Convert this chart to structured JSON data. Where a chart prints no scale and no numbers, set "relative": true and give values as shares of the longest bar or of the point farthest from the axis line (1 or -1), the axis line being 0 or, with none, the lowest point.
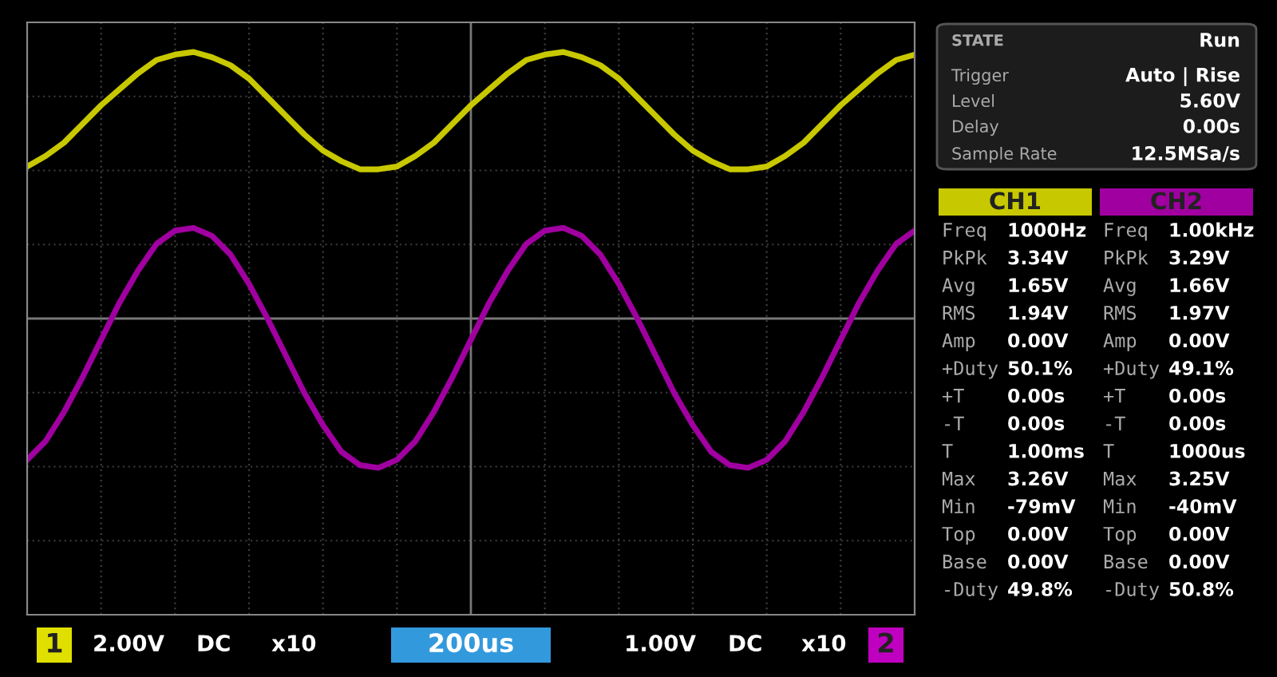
{
  "chart_data": {
    "type": "line",
    "relative": true,
    "grid": true,
    "categories": [
      null,
      null,
      null,
      null,
      null,
      null,
      null,
      null,
      null,
      null,
      null,
      null,
      null,
      null,
      null,
      null,
      null,
      null,
      null,
      null,
      null,
      null,
      null,
      null,
      null,
      null,
      null,
      null,
      null,
      null,
      null,
      null,
      null,
      null,
      null,
      null,
      null,
      null,
      null,
      null,
      null,
      null,
      null,
      null,
      null,
      null,
      null,
      null,
      null
    ],
    "series": [
      {
        "name": "CH1",
        "color": "#c8c800",
        "values": [
          0.57,
          0.61,
          0.66,
          0.73,
          0.8,
          0.86,
          0.92,
          0.97,
          0.99,
          1.0,
          0.98,
          0.95,
          0.9,
          0.83,
          0.76,
          0.69,
          0.63,
          0.59,
          0.56,
          0.56,
          0.57,
          0.61,
          0.66,
          0.73,
          0.8,
          0.86,
          0.92,
          0.97,
          0.99,
          1.0,
          0.98,
          0.95,
          0.9,
          0.83,
          0.76,
          0.69,
          0.63,
          0.59,
          0.56,
          0.56,
          0.57,
          0.61,
          0.66,
          0.73,
          0.8,
          0.86,
          0.92,
          0.97,
          0.99
        ]
      },
      {
        "name": "CH2",
        "color": "#a000a0",
        "values": [
          -0.53,
          -0.46,
          -0.35,
          -0.22,
          -0.08,
          0.06,
          0.18,
          0.28,
          0.33,
          0.34,
          0.31,
          0.24,
          0.13,
          0.0,
          -0.14,
          -0.28,
          -0.4,
          -0.5,
          -0.55,
          -0.56,
          -0.53,
          -0.46,
          -0.35,
          -0.22,
          -0.08,
          0.06,
          0.18,
          0.28,
          0.33,
          0.34,
          0.31,
          0.24,
          0.13,
          0.0,
          -0.14,
          -0.28,
          -0.4,
          -0.5,
          -0.55,
          -0.56,
          -0.53,
          -0.46,
          -0.35,
          -0.22,
          -0.08,
          0.06,
          0.18,
          0.28,
          0.33
        ]
      }
    ],
    "annotations": [
      "STATE",
      "Run",
      "Trigger",
      "Auto | Rise",
      "Level",
      "5.60V",
      "Delay",
      "0.00s",
      "Sample Rate",
      "12.5MSa/s",
      "Freq",
      "1000Hz",
      "PkPk",
      "3.34V",
      "Avg",
      "1.65V",
      "RMS",
      "1.94V",
      "Amp",
      "0.00V",
      "+Duty",
      "50.1%",
      "+T",
      "0.00s",
      "-T",
      "0.00s",
      "T",
      "1.00ms",
      "Max",
      "3.26V",
      "Min",
      "-79mV",
      "Top",
      "0.00V",
      "Base",
      "0.00V",
      "-Duty",
      "49.8%",
      "Freq",
      "1.00kHz",
      "PkPk",
      "3.29V",
      "Avg",
      "1.66V",
      "RMS",
      "1.97V",
      "Amp",
      "0.00V",
      "+Duty",
      "49.1%",
      "+T",
      "0.00s",
      "-T",
      "0.00s",
      "T",
      "1000us",
      "Max",
      "3.25V",
      "Min",
      "-40mV",
      "Top",
      "0.00V",
      "Base",
      "0.00V",
      "-Duty",
      "50.8%",
      "1",
      "2.00V",
      "DC",
      "x10",
      "200us",
      "1.00V",
      "DC",
      "x10",
      "2"
    ]
  }
}
